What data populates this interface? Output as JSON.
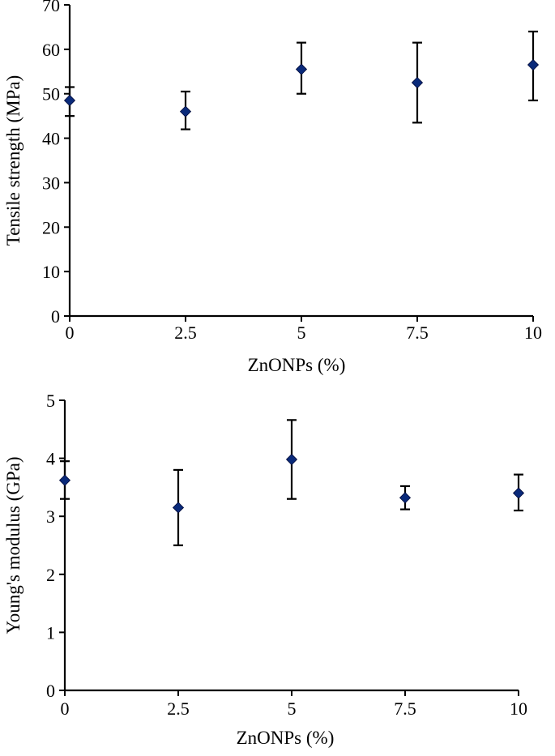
{
  "chart_data": [
    {
      "type": "scatter",
      "title": "",
      "xlabel": "ZnONPs (%)",
      "ylabel": "Tensile strength (MPa)",
      "x": [
        0,
        2.5,
        5,
        7.5,
        10
      ],
      "xticks": [
        "0",
        "2.5",
        "5",
        "7.5",
        "10"
      ],
      "xlim": [
        0,
        10
      ],
      "ylim": [
        0,
        70
      ],
      "yticks": [
        "0",
        "10",
        "20",
        "30",
        "40",
        "50",
        "60",
        "70"
      ],
      "series": [
        {
          "values": [
            48.5,
            46,
            55.5,
            52.5,
            56.5
          ],
          "error_low": [
            45,
            42,
            50,
            43.5,
            48.5
          ],
          "error_high": [
            51.5,
            50.5,
            61.5,
            61.5,
            64
          ],
          "marker": "diamond",
          "color": "#0a2a7a"
        }
      ],
      "grid": false
    },
    {
      "type": "scatter",
      "title": "",
      "xlabel": "ZnONPs (%)",
      "ylabel": "Young's modulus (GPa)",
      "x": [
        0,
        2.5,
        5,
        7.5,
        10
      ],
      "xticks": [
        "0",
        "2.5",
        "5",
        "7.5",
        "10"
      ],
      "xlim": [
        0,
        10
      ],
      "ylim": [
        0,
        5
      ],
      "yticks": [
        "0",
        "1",
        "2",
        "3",
        "4",
        "5"
      ],
      "series": [
        {
          "values": [
            3.62,
            3.15,
            3.98,
            3.32,
            3.4
          ],
          "error_low": [
            3.3,
            2.5,
            3.3,
            3.12,
            3.1
          ],
          "error_high": [
            3.95,
            3.8,
            4.66,
            3.52,
            3.72
          ],
          "marker": "diamond",
          "color": "#0a2a7a"
        }
      ],
      "grid": false
    }
  ]
}
